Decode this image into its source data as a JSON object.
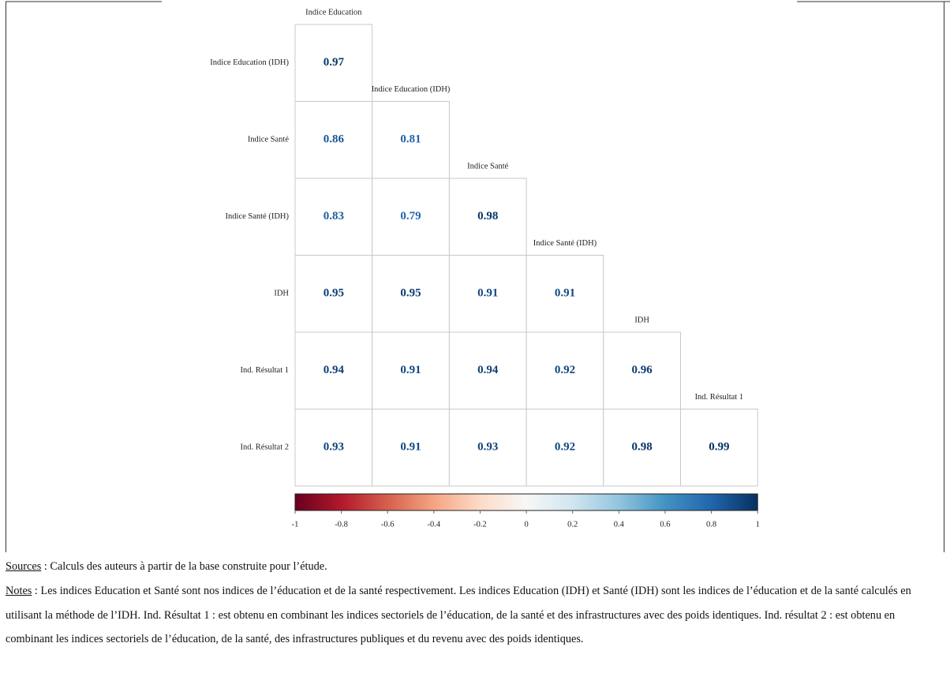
{
  "chart_data": {
    "type": "correlation-matrix",
    "rows": [
      "Indice Education (IDH)",
      "Indice Santé",
      "Indice Santé (IDH)",
      "IDH",
      "Ind. Résultat 1",
      "Ind. Résultat 2"
    ],
    "columns": [
      "Indice Education",
      "Indice Education (IDH)",
      "Indice Santé",
      "Indice Santé (IDH)",
      "IDH",
      "Ind. Résultat 1"
    ],
    "values": [
      [
        0.97
      ],
      [
        0.86,
        0.81
      ],
      [
        0.83,
        0.79,
        0.98
      ],
      [
        0.95,
        0.95,
        0.91,
        0.91
      ],
      [
        0.94,
        0.91,
        0.94,
        0.92,
        0.96
      ],
      [
        0.93,
        0.91,
        0.93,
        0.92,
        0.98,
        0.99
      ]
    ],
    "colorscale": [
      "#67001f",
      "#b2182b",
      "#d6604d",
      "#f4a582",
      "#fddbc7",
      "#f7f7f7",
      "#d1e5f0",
      "#92c5de",
      "#4393c3",
      "#2166ac",
      "#053061"
    ],
    "clim": [
      -1,
      1
    ],
    "cticks": [
      -1,
      -0.8,
      -0.6,
      -0.4,
      -0.2,
      0,
      0.2,
      0.4,
      0.6,
      0.8,
      1
    ]
  },
  "sources": {
    "label": "Sources",
    "text": " : Calculs des auteurs à partir de la base construite pour l’étude."
  },
  "notes": {
    "label": "Notes",
    "text": " : Les indices Education et Santé sont nos indices de l’éducation et de la santé respectivement. Les indices Education (IDH) et Santé (IDH) sont les indices de l’éducation et de la santé calculés en utilisant la méthode de l’IDH. Ind. Résultat 1 : est obtenu en combinant les indices sectoriels de l’éducation, de la santé et des infrastructures avec des poids identiques. Ind. résultat 2 : est obtenu en combinant les indices sectoriels de l’éducation, de la santé, des infrastructures publiques et du revenu avec des poids identiques."
  }
}
